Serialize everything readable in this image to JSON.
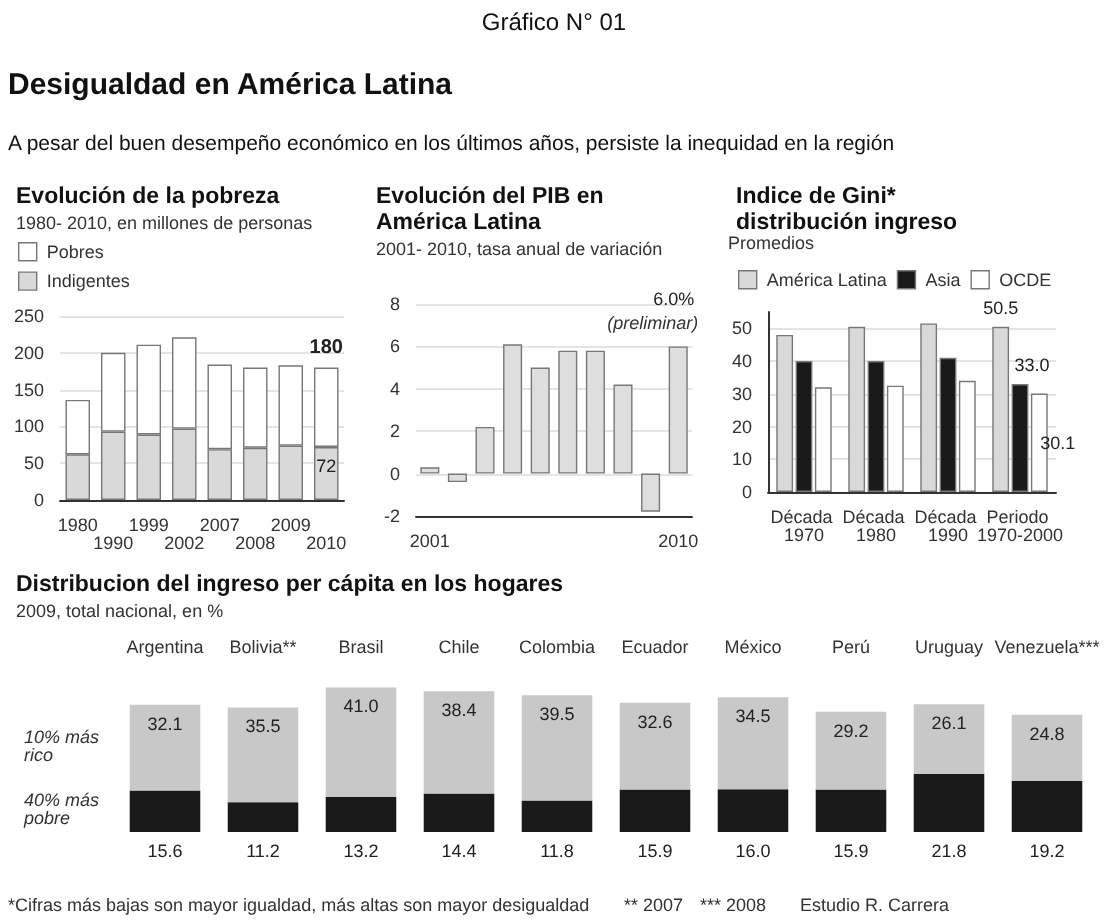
{
  "chart_data": [
    {
      "type": "bar",
      "title": "Evolución de la pobreza",
      "subtitle": "1980- 2010, en millones de personas",
      "annotations": [
        "Gráfico N° 01",
        "Desigualdad en América Latina",
        "A pesar del buen desempeño económico en los últimos años, persiste la inequidad en la región"
      ],
      "categories": [
        "1980",
        "1990",
        "1999",
        "2002",
        "2007",
        "2008",
        "2009",
        "2010"
      ],
      "stacked": true,
      "series": [
        {
          "name": "Indigentes",
          "color": "#d9d9d9",
          "values": [
            62,
            93,
            89,
            97,
            69,
            71,
            74,
            72
          ],
          "value_labels": [
            null,
            null,
            null,
            null,
            null,
            null,
            null,
            "72"
          ]
        },
        {
          "name": "Pobres",
          "color": "#ffffff",
          "values": [
            74,
            107,
            122,
            124,
            115,
            109,
            109,
            108
          ]
        }
      ],
      "totals": [
        null,
        null,
        null,
        null,
        null,
        null,
        null,
        "180"
      ],
      "ylim": [
        0,
        250
      ],
      "yticks": [
        0,
        50,
        100,
        150,
        200,
        250
      ],
      "grid": "y",
      "legend": "top left"
    },
    {
      "type": "bar",
      "title": "Evolución del PIB en América Latina",
      "subtitle": "2001- 2010, tasa anual de variación",
      "categories": [
        "2001",
        null,
        null,
        null,
        null,
        null,
        null,
        null,
        null,
        "2010"
      ],
      "values": [
        0.3,
        -0.4,
        2.2,
        6.1,
        5.0,
        5.8,
        5.8,
        4.2,
        -1.8,
        6.0
      ],
      "color": "#dedede",
      "value_labels": [
        null,
        null,
        null,
        null,
        null,
        null,
        null,
        null,
        null,
        "6.0%"
      ],
      "annotations": [
        {
          "text": "(preliminar)",
          "x": "2010",
          "y": 6
        }
      ],
      "ylim": [
        -2,
        8
      ],
      "yticks": [
        -2,
        0,
        2,
        4,
        6,
        8
      ],
      "grid": "y"
    },
    {
      "type": "bar",
      "title": "Indice de Gini* distribución ingreso",
      "legend_title": "Promedios",
      "categories": [
        "Década 1970",
        "Década 1980",
        "Década 1990",
        "Periodo 1970-2000"
      ],
      "series": [
        {
          "name": "América Latina",
          "color": "#d9d9d9",
          "values": [
            48,
            50.5,
            51.5,
            50.5
          ],
          "value_labels": [
            null,
            null,
            null,
            "50.5"
          ]
        },
        {
          "name": "Asia",
          "color": "#1a1a1a",
          "values": [
            40,
            40,
            41,
            33.0
          ],
          "value_labels": [
            null,
            null,
            null,
            "33.0"
          ]
        },
        {
          "name": "OCDE",
          "color": "#ffffff",
          "values": [
            32,
            32.5,
            34,
            30.1
          ],
          "value_labels": [
            null,
            null,
            null,
            "30.1"
          ]
        }
      ],
      "ylim": [
        0,
        55
      ],
      "yticks": [
        0,
        10,
        20,
        30,
        40,
        50
      ],
      "grid": "y",
      "legend": "top left"
    },
    {
      "type": "bar",
      "title": "Distribucion del ingreso per cápita en los hogares",
      "subtitle": "2009, total nacional, en %",
      "categories": [
        "Argentina",
        "Bolivia**",
        "Brasil",
        "Chile",
        "Colombia",
        "Ecuador",
        "México",
        "Perú",
        "Uruguay",
        "Venezuela***"
      ],
      "stacked": true,
      "series": [
        {
          "name": "40% más pobre",
          "color": "#1a1a1a",
          "values": [
            15.6,
            11.2,
            13.2,
            14.4,
            11.8,
            15.9,
            16.0,
            15.9,
            21.8,
            19.2
          ],
          "value_labels": [
            "15.6",
            "11.2",
            "13.2",
            "14.4",
            "11.8",
            "15.9",
            "16.0",
            "15.9",
            "21.8",
            "19.2"
          ]
        },
        {
          "name": "10% más rico",
          "color": "#c8c8c8",
          "values": [
            32.1,
            35.5,
            41.0,
            38.4,
            39.5,
            32.6,
            34.5,
            29.2,
            26.1,
            24.8
          ],
          "value_labels": [
            "32.1",
            "35.5",
            "41.0",
            "38.4",
            "39.5",
            "32.6",
            "34.5",
            "29.2",
            "26.1",
            "24.8"
          ]
        }
      ],
      "tick_labels": "x",
      "annotations": [
        "*Cifras más bajas son mayor igualdad, más altas son mayor desigualdad",
        "** 2007",
        "*** 2008",
        "Estudio R. Carrera"
      ]
    }
  ]
}
